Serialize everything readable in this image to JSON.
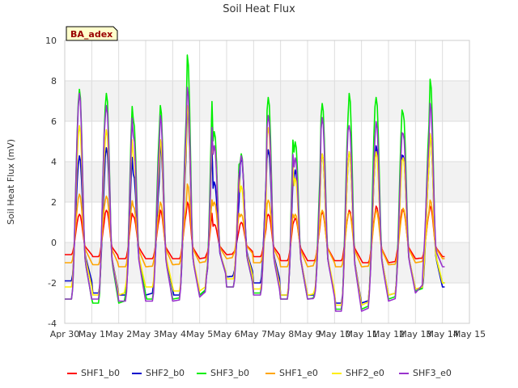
{
  "chart_data": {
    "type": "line",
    "title": "Soil Heat Flux",
    "xlabel": "",
    "ylabel": "Soil Heat Flux (mV)",
    "badge": "BA_adex",
    "xlim": [
      "2023-04-30",
      "2023-05-15"
    ],
    "ylim": [
      -4,
      10
    ],
    "x_tick_labels": [
      "Apr 30",
      "May 1",
      "May 2",
      "May 3",
      "May 4",
      "May 5",
      "May 6",
      "May 7",
      "May 8",
      "May 9",
      "May 10",
      "May 11",
      "May 12",
      "May 13",
      "May 14",
      "May 15"
    ],
    "y_ticks": [
      -4,
      -2,
      0,
      2,
      4,
      6,
      8,
      10
    ],
    "grid": true,
    "shaded_bands": [
      [
        -2,
        0
      ],
      [
        2,
        4
      ],
      [
        6,
        8
      ]
    ],
    "legend_position": "bottom",
    "days": [
      "May 1",
      "May 2",
      "May 3",
      "May 4",
      "May 5",
      "May 6",
      "May 7",
      "May 8",
      "May 9",
      "May 10",
      "May 11",
      "May 12",
      "May 13",
      "May 14"
    ],
    "series": [
      {
        "name": "SHF1_b0",
        "color": "#ff0000",
        "daily_min": [
          -0.6,
          -0.7,
          -0.8,
          -0.8,
          -0.8,
          -0.6,
          -0.5,
          -0.7,
          -0.9,
          -0.9,
          -0.9,
          -1.0,
          -0.8,
          -0.7
        ],
        "daily_max": [
          1.4,
          1.6,
          1.3,
          1.6,
          2.0,
          0.9,
          1.0,
          1.4,
          1.2,
          1.5,
          1.6,
          1.8,
          1.6,
          1.8
        ]
      },
      {
        "name": "SHF2_b0",
        "color": "#0000cc",
        "daily_min": [
          -1.9,
          -2.5,
          -2.6,
          -2.3,
          -2.6,
          -1.7,
          -1.6,
          -2.0,
          -2.6,
          -2.6,
          -3.0,
          -2.6,
          -2.3,
          -2.2
        ],
        "daily_max": [
          4.3,
          4.7,
          3.4,
          4.8,
          6.5,
          3.0,
          4.2,
          4.6,
          3.6,
          4.4,
          4.5,
          4.8,
          4.3,
          5.4
        ]
      },
      {
        "name": "SHF3_b0",
        "color": "#00ee00",
        "daily_min": [
          -2.8,
          -3.0,
          -2.6,
          -2.8,
          -2.6,
          -1.6,
          -2.2,
          -2.5,
          -2.8,
          -2.6,
          -3.3,
          -2.8,
          -2.4,
          -2.0
        ],
        "daily_max": [
          7.6,
          7.4,
          6.1,
          6.8,
          9.3,
          5.5,
          4.4,
          7.2,
          5.0,
          6.9,
          7.4,
          7.2,
          6.4,
          8.1
        ]
      },
      {
        "name": "SHF1_e0",
        "color": "#ffa500",
        "daily_min": [
          -1.0,
          -1.1,
          -1.2,
          -1.1,
          -1.0,
          -0.8,
          -0.6,
          -1.0,
          -1.2,
          -1.0,
          -1.2,
          -1.1,
          -1.0,
          -0.8
        ],
        "daily_max": [
          2.4,
          2.3,
          1.8,
          2.0,
          2.9,
          2.0,
          1.4,
          2.1,
          1.4,
          1.6,
          1.5,
          1.6,
          1.7,
          2.1
        ]
      },
      {
        "name": "SHF2_e0",
        "color": "#ffee00",
        "daily_min": [
          -2.2,
          -2.6,
          -2.2,
          -2.2,
          -2.4,
          -1.6,
          -1.8,
          -2.3,
          -2.6,
          -2.4,
          -3.1,
          -2.6,
          -2.3,
          -2.0
        ],
        "daily_max": [
          5.8,
          5.6,
          4.3,
          5.1,
          6.8,
          4.8,
          2.8,
          5.7,
          3.2,
          4.4,
          4.5,
          4.5,
          4.2,
          5.4
        ]
      },
      {
        "name": "SHF3_e0",
        "color": "#9933cc",
        "daily_min": [
          -2.8,
          -2.8,
          -2.9,
          -2.9,
          -2.7,
          -1.7,
          -2.2,
          -2.6,
          -2.8,
          -2.7,
          -3.4,
          -2.9,
          -2.5,
          -1.2
        ],
        "daily_max": [
          7.4,
          6.8,
          5.3,
          6.3,
          7.7,
          4.8,
          4.3,
          6.3,
          4.2,
          6.2,
          5.8,
          6.0,
          5.4,
          6.9
        ]
      }
    ]
  }
}
